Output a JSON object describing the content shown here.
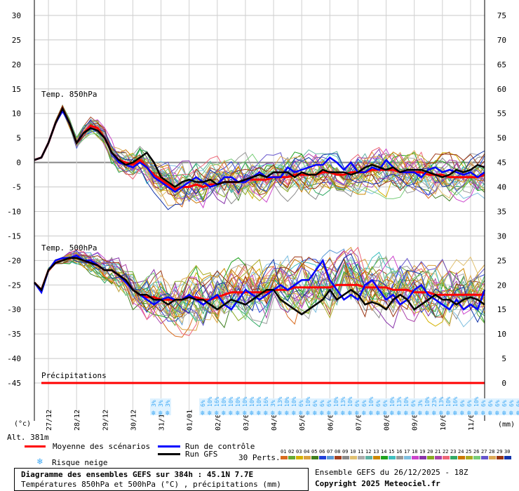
{
  "chart_data": {
    "type": "line",
    "x_dates": [
      "27/12",
      "28/12",
      "29/12",
      "30/12",
      "31/12",
      "01/01",
      "02/01",
      "03/01",
      "04/01",
      "05/01",
      "06/01",
      "07/01",
      "08/01",
      "09/01",
      "10/01",
      "11/01"
    ],
    "left_axis": {
      "unit": "(°c)",
      "ticks": [
        30,
        25,
        20,
        15,
        10,
        5,
        0,
        -5,
        -10,
        -15,
        -20,
        -25,
        -30,
        -35,
        -40,
        -45
      ]
    },
    "right_axis": {
      "unit": "(mm)",
      "ticks": [
        75,
        70,
        65,
        60,
        55,
        50,
        45,
        40,
        35,
        30,
        25,
        20,
        15,
        10,
        5,
        0
      ]
    },
    "altitude_label": "Alt. 381m",
    "panel_labels": {
      "t850": "Temp. 850hPa",
      "t500": "Temp. 500hPa",
      "precip": "Précipitations"
    },
    "x_hours": [
      0,
      6,
      12,
      18,
      24,
      30,
      36,
      42,
      48,
      54,
      60,
      66,
      72,
      78,
      84,
      90,
      96,
      102,
      108,
      114,
      120,
      126,
      132,
      138,
      144,
      150,
      156,
      162,
      168,
      174,
      180,
      186,
      192,
      198,
      204,
      210,
      216,
      222,
      228,
      234,
      240,
      246,
      252,
      258,
      264,
      270,
      276,
      282,
      288,
      294,
      300,
      306,
      312,
      318,
      324,
      330,
      336,
      342,
      348,
      354,
      360,
      366,
      372,
      378,
      384
    ],
    "series": [
      {
        "name": "Moyenne des scénarios",
        "color": "#ff0000",
        "panel": "t850",
        "values": [
          0.5,
          1,
          4,
          8,
          11,
          8,
          4,
          6,
          7.5,
          7,
          5,
          2,
          0.5,
          0,
          -0.5,
          0.5,
          -1,
          -2.5,
          -3.5,
          -4.5,
          -5.5,
          -5,
          -5,
          -4.5,
          -5,
          -4.5,
          -4.5,
          -4,
          -4,
          -4,
          -3.5,
          -3.5,
          -3.5,
          -3.5,
          -3,
          -3,
          -3,
          -2.5,
          -2.5,
          -2.5,
          -2.5,
          -2,
          -2,
          -2.5,
          -2.5,
          -2,
          -2,
          -2,
          -1.5,
          -1.5,
          -1.5,
          -1.5,
          -2,
          -2,
          -2,
          -2,
          -2.5,
          -2.5,
          -2.5,
          -3,
          -3,
          -3,
          -3,
          -3,
          -2.5
        ]
      },
      {
        "name": "Run de contrôle",
        "color": "#0000ff",
        "panel": "t850",
        "values": [
          0.5,
          1,
          4,
          8,
          10.5,
          8,
          4,
          6,
          7,
          6.5,
          5,
          2,
          0,
          -0.5,
          -1,
          0,
          -1,
          -3,
          -4,
          -5,
          -6,
          -5,
          -4,
          -3,
          -4,
          -5,
          -4.5,
          -3,
          -3,
          -4,
          -4,
          -3,
          -2,
          -3,
          -3,
          -3,
          -1,
          -2,
          -1.5,
          -1,
          -0.5,
          -0.5,
          1,
          0,
          -1.5,
          0,
          -2,
          -2,
          -1,
          -1.5,
          0.5,
          -1,
          -2,
          -2,
          -2,
          -3,
          -1.5,
          -1,
          -2,
          -1.5,
          -2,
          -2.5,
          -2,
          -3,
          -2
        ]
      },
      {
        "name": "Run GFS",
        "color": "#000000",
        "panel": "t850",
        "values": [
          0.5,
          1,
          4,
          8,
          11,
          8,
          4,
          6,
          7,
          6.5,
          5,
          2,
          0.5,
          -0.5,
          0,
          1,
          2,
          0,
          -3,
          -4,
          -5,
          -4,
          -3.5,
          -4,
          -4,
          -3.5,
          -4.5,
          -4,
          -4,
          -4,
          -3.5,
          -3,
          -2.5,
          -3,
          -2,
          -2,
          -2,
          -3,
          -2,
          -2.5,
          -2.5,
          -1.5,
          -2,
          -2,
          -2,
          -2.5,
          -2,
          -1,
          -0.5,
          -1,
          -1.5,
          -1,
          -2,
          -1.5,
          -1.5,
          -1.5,
          -2,
          -2.5,
          -3,
          -2.5,
          -1.5,
          -2,
          -1.5,
          -0.5,
          -1
        ]
      },
      {
        "name": "Moyenne des scénarios 500hPa",
        "color": "#ff0000",
        "panel": "t500",
        "values": [
          -24.5,
          -26,
          -22,
          -20.5,
          -20,
          -19.5,
          -19.5,
          -20,
          -20.5,
          -21,
          -22,
          -22,
          -23,
          -24,
          -26,
          -27,
          -27.5,
          -27.5,
          -28,
          -28,
          -28,
          -28,
          -27.5,
          -27.5,
          -28,
          -28,
          -27.5,
          -27,
          -26.5,
          -26.5,
          -26.5,
          -26.5,
          -26.5,
          -26.5,
          -26,
          -26,
          -26,
          -25.5,
          -25.5,
          -25.5,
          -25.5,
          -25.5,
          -25.5,
          -25,
          -25,
          -25,
          -25,
          -25.5,
          -25.5,
          -25.5,
          -25.5,
          -26,
          -26,
          -26,
          -26.5,
          -26.5,
          -26.5,
          -27,
          -27,
          -27,
          -27,
          -27,
          -27,
          -27,
          -27
        ]
      },
      {
        "name": "Run de contrôle 500hPa",
        "color": "#0000ff",
        "panel": "t500",
        "values": [
          -24.5,
          -26.5,
          -22,
          -20,
          -19.5,
          -19.5,
          -19,
          -20,
          -20,
          -21,
          -22,
          -22,
          -23,
          -24.5,
          -26,
          -27,
          -28,
          -29,
          -28,
          -27.5,
          -28,
          -28,
          -27,
          -28,
          -29,
          -28,
          -27,
          -29,
          -30,
          -28,
          -26,
          -27,
          -28,
          -27,
          -26,
          -25,
          -26,
          -25,
          -24,
          -24,
          -22,
          -20,
          -24,
          -26,
          -28,
          -27,
          -28,
          -25,
          -24,
          -26,
          -28,
          -27,
          -29,
          -28,
          -26,
          -25,
          -27,
          -28,
          -29,
          -30,
          -28,
          -30,
          -29,
          -30,
          -26
        ]
      },
      {
        "name": "Run GFS 500hPa",
        "color": "#000000",
        "panel": "t500",
        "values": [
          -24.5,
          -26,
          -22,
          -20.5,
          -20,
          -19.5,
          -19.5,
          -20,
          -20.5,
          -21,
          -22,
          -22,
          -23,
          -24,
          -26,
          -27,
          -27,
          -28,
          -28,
          -29,
          -28,
          -28,
          -27.5,
          -28,
          -28,
          -29,
          -30,
          -29,
          -28,
          -28.5,
          -29,
          -28,
          -27,
          -26,
          -26,
          -28,
          -29,
          -30,
          -31,
          -30,
          -29,
          -28,
          -26,
          -28,
          -27,
          -26,
          -27,
          -29,
          -28.5,
          -29,
          -30,
          -28,
          -27,
          -28,
          -30,
          -29,
          -28,
          -27,
          -28,
          -28,
          -29,
          -28,
          -27.5,
          -28,
          -29
        ]
      }
    ],
    "precip_snow_labels": [
      "3%",
      "3%",
      "3%",
      "6%",
      "10%",
      "16%",
      "10%",
      "10%",
      "10%",
      "10%",
      "10%",
      "10%",
      "16%",
      "3%",
      "13%",
      "10%",
      "10%",
      "6%",
      "10%",
      "6%",
      "6%",
      "6%",
      "10%",
      "13%",
      "10%",
      "6%",
      "6%",
      "10%",
      "6%",
      "6%",
      "10%",
      "13%",
      "10%",
      "6%",
      "3%",
      "10%",
      "23%",
      "13%",
      "10%",
      "16%",
      "6%",
      "6%",
      "10%",
      "6%",
      "6%",
      "6%",
      "6%",
      "6%",
      "6%"
    ],
    "legend": {
      "mean": "Moyenne des scénarios",
      "control": "Run de contrôle",
      "gfs": "Run GFS",
      "snow_risk": "Risque neige",
      "perts_label": "30 Perts.",
      "perts": [
        "01",
        "02",
        "03",
        "04",
        "05",
        "06",
        "07",
        "08",
        "09",
        "10",
        "11",
        "12",
        "13",
        "14",
        "15",
        "16",
        "17",
        "18",
        "19",
        "20",
        "21",
        "22",
        "23",
        "24",
        "25",
        "26",
        "27",
        "28",
        "29",
        "30"
      ],
      "pert_colors": [
        "#d96b1e",
        "#66aa33",
        "#d4b200",
        "#d9a13f",
        "#3f7f1f",
        "#1f3fd9",
        "#5b9ad5",
        "#a33f1f",
        "#888888",
        "#e0c070",
        "#aaaaaa",
        "#5fb3a3",
        "#cc8800",
        "#1fa31f",
        "#3fbfbf",
        "#999999",
        "#7fbfe0",
        "#cc44cc",
        "#8833aa",
        "#88aa22",
        "#aa44aa",
        "#ee6677",
        "#33aa66",
        "#cc7700",
        "#aaaa22",
        "#77cc77",
        "#6655cc",
        "#ddaa55",
        "#993311",
        "#1133aa"
      ]
    },
    "footer": {
      "title": "Diagramme des ensembles GEFS sur 384h : 45.1N 7.7E",
      "subtitle": "Températures 850hPa et 500hPa (°C) , précipitations (mm)",
      "run": "Ensemble GEFS du 26/12/2025 - 18Z",
      "copyright": "Copyright 2025 Meteociel.fr"
    }
  }
}
